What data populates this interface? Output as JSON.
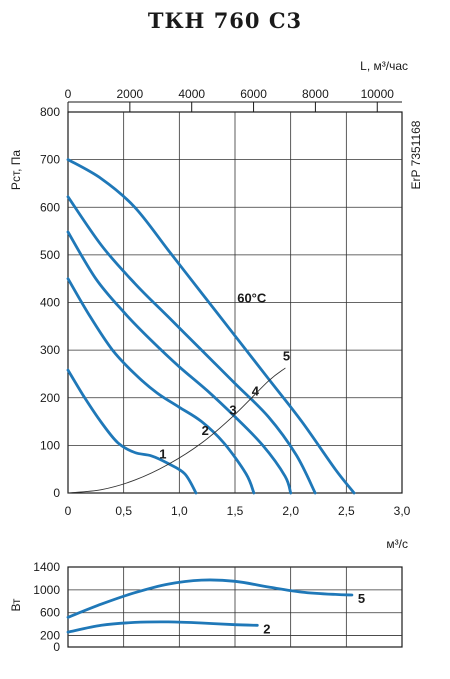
{
  "title": "ТКН 760 С3",
  "side_label": "ErP 7351168",
  "chart_data": [
    {
      "type": "line",
      "name": "pressure-flow",
      "xlabel": "м³/с",
      "x2label": "L, м³/час",
      "ylabel": "Pст, Па",
      "xlim": [
        0,
        3.0
      ],
      "x2lim": [
        0,
        10800
      ],
      "ylim": [
        0,
        800
      ],
      "xticks": [
        "0",
        "0,5",
        "1,0",
        "1,5",
        "2,0",
        "2,5",
        "3,0"
      ],
      "x2ticks": [
        "0",
        "2000",
        "4000",
        "6000",
        "8000",
        "10000"
      ],
      "yticks": [
        "0",
        "100",
        "200",
        "300",
        "400",
        "500",
        "600",
        "700",
        "800"
      ],
      "grid": true,
      "annotation": "60°C",
      "series": [
        {
          "name": "1",
          "label_at": [
            0.82,
            72
          ],
          "x": [
            0.0,
            0.15,
            0.3,
            0.45,
            0.6,
            0.75,
            0.9,
            1.05,
            1.15
          ],
          "y": [
            258,
            200,
            148,
            105,
            85,
            78,
            62,
            40,
            0
          ]
        },
        {
          "name": "2",
          "label_at": [
            1.2,
            122
          ],
          "x": [
            0.0,
            0.2,
            0.4,
            0.6,
            0.8,
            1.0,
            1.2,
            1.4,
            1.6,
            1.67
          ],
          "y": [
            450,
            370,
            300,
            250,
            210,
            180,
            150,
            105,
            40,
            0
          ]
        },
        {
          "name": "3",
          "label_at": [
            1.45,
            165
          ],
          "x": [
            0.0,
            0.25,
            0.5,
            0.75,
            1.0,
            1.25,
            1.5,
            1.75,
            1.95,
            2.0
          ],
          "y": [
            548,
            450,
            380,
            320,
            265,
            215,
            160,
            100,
            35,
            0
          ]
        },
        {
          "name": "4",
          "label_at": [
            1.65,
            205
          ],
          "x": [
            0.0,
            0.3,
            0.6,
            0.9,
            1.2,
            1.5,
            1.8,
            2.05,
            2.22
          ],
          "y": [
            622,
            520,
            440,
            370,
            300,
            230,
            160,
            80,
            0
          ]
        },
        {
          "name": "5",
          "label_at": [
            1.93,
            278
          ],
          "x": [
            0.0,
            0.3,
            0.6,
            0.9,
            1.2,
            1.5,
            1.8,
            2.1,
            2.4,
            2.57
          ],
          "y": [
            700,
            660,
            600,
            510,
            420,
            330,
            240,
            150,
            50,
            0
          ]
        },
        {
          "name": "system",
          "x": [
            0.0,
            0.3,
            0.6,
            0.9,
            1.2,
            1.5,
            1.8,
            1.95
          ],
          "y": [
            0,
            7,
            27,
            60,
            105,
            165,
            235,
            262
          ]
        }
      ]
    },
    {
      "type": "line",
      "name": "power",
      "ylabel": "Вт",
      "xlim": [
        0,
        3.0
      ],
      "ylim": [
        0,
        1400
      ],
      "yticks": [
        "0",
        "200",
        "600",
        "1000",
        "1400"
      ],
      "series": [
        {
          "name": "5",
          "x": [
            0.0,
            0.3,
            0.6,
            0.9,
            1.2,
            1.5,
            1.8,
            2.1,
            2.4,
            2.55
          ],
          "y": [
            520,
            750,
            950,
            1100,
            1170,
            1150,
            1050,
            960,
            920,
            910
          ]
        },
        {
          "name": "2",
          "x": [
            0.0,
            0.3,
            0.6,
            0.9,
            1.2,
            1.5,
            1.7
          ],
          "y": [
            260,
            380,
            430,
            440,
            420,
            390,
            380
          ]
        }
      ]
    }
  ]
}
